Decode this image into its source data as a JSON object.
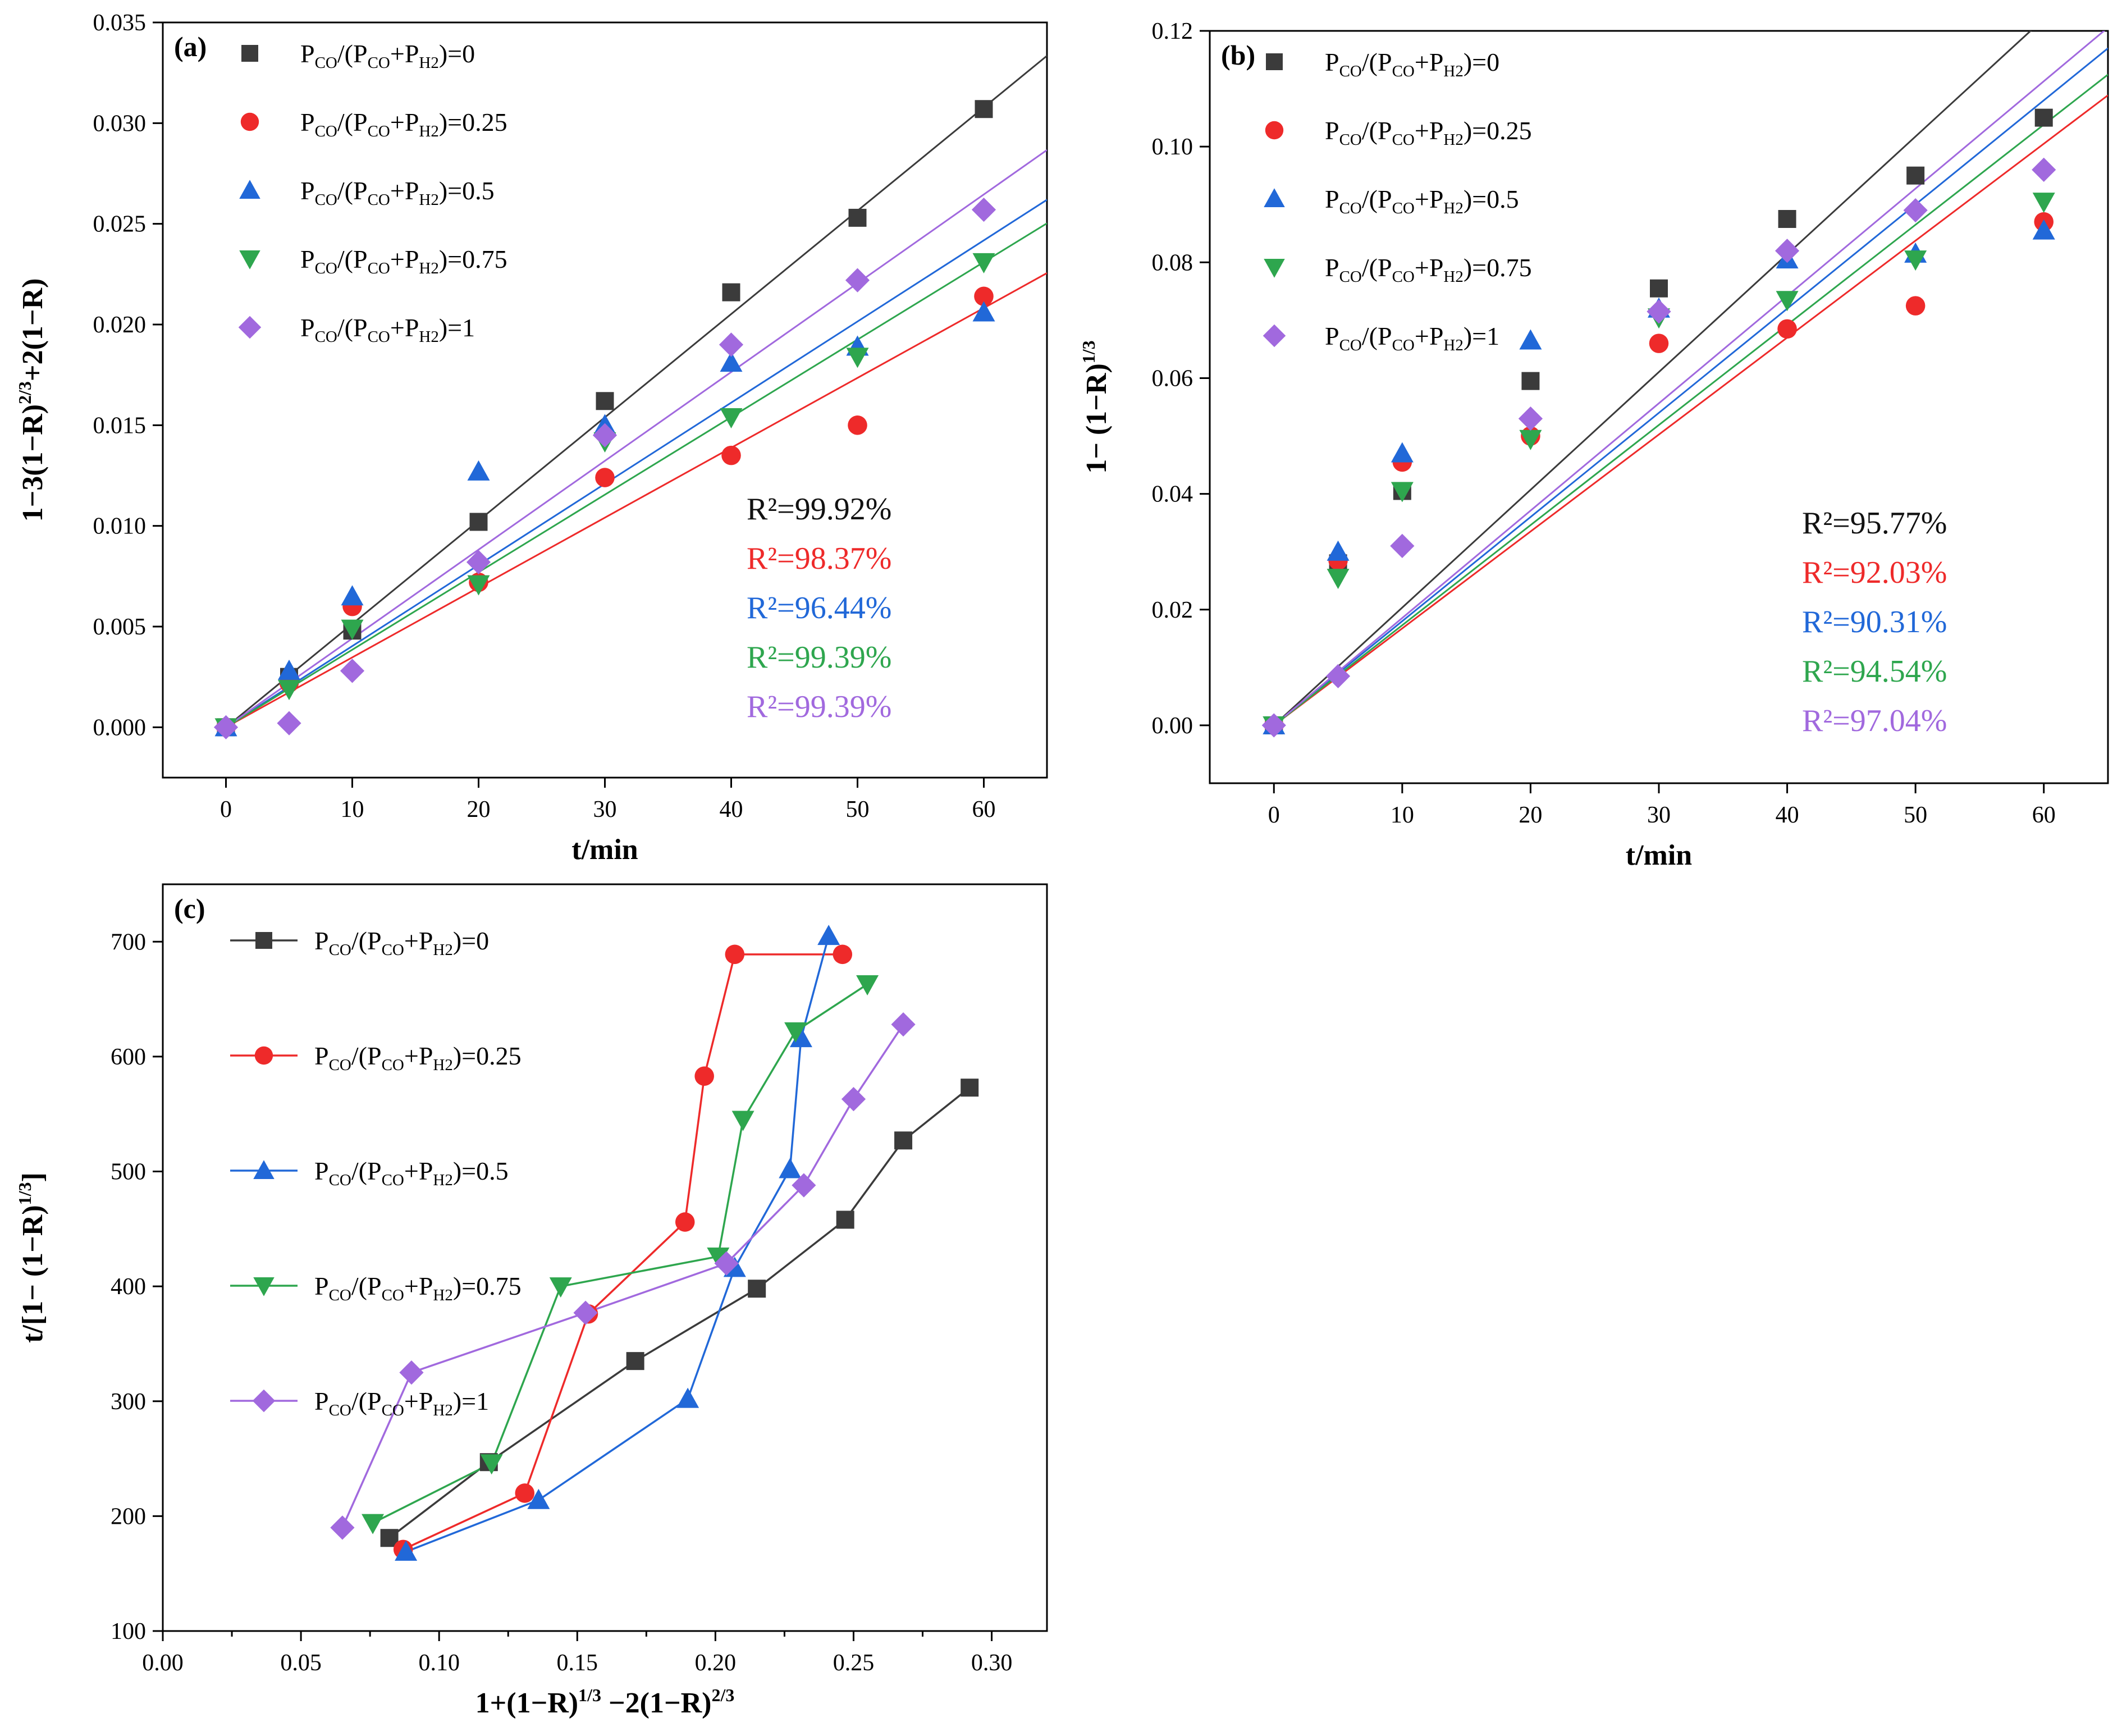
{
  "figure": {
    "colors": {
      "P0": "#3b3b3b",
      "P025": "#ee2a2a",
      "P05": "#2168d8",
      "P075": "#2ea64e",
      "P1": "#a169de"
    }
  },
  "chart_data": [
    {
      "id": "a",
      "type": "scatter",
      "panel_label": "(a)",
      "xlabel": "t/min",
      "ylabel": "1−3(1−R)^{2/3}+2(1−R)",
      "xlim": [
        -5,
        65
      ],
      "ylim": [
        -0.0025,
        0.035
      ],
      "xticks": [
        0,
        10,
        20,
        30,
        40,
        50,
        60
      ],
      "yticks": [
        0.0,
        0.005,
        0.01,
        0.015,
        0.02,
        0.025,
        0.03,
        0.035
      ],
      "ytick_labels": [
        "0.000",
        "0.005",
        "0.010",
        "0.015",
        "0.020",
        "0.025",
        "0.030",
        "0.035"
      ],
      "legend_position": "top-left",
      "x": [
        0,
        5,
        10,
        20,
        30,
        40,
        50,
        60
      ],
      "series": [
        {
          "key": "P0",
          "legend": "P_CO/(P_CO+P_H2)=0",
          "marker": "square",
          "values": [
            0,
            0.0025,
            0.0048,
            0.0102,
            0.0162,
            0.0216,
            0.0253,
            0.0307
          ],
          "fit_slope": 0.000513,
          "r2": "R²=99.92%"
        },
        {
          "key": "P025",
          "legend": "P_CO/(P_CO+P_H2)=0.25",
          "marker": "circle",
          "values": [
            0,
            0.0022,
            0.006,
            0.0072,
            0.0124,
            0.0135,
            0.015,
            0.0214
          ],
          "fit_slope": 0.000347,
          "r2": "R²=98.37%"
        },
        {
          "key": "P05",
          "legend": "P_CO/(P_CO+P_H2)=0.5",
          "marker": "triangle-up",
          "values": [
            0,
            0.0028,
            0.0065,
            0.0127,
            0.015,
            0.0181,
            0.0189,
            0.0206
          ],
          "fit_slope": 0.000403,
          "r2": "R²=96.44%"
        },
        {
          "key": "P075",
          "legend": "P_CO/(P_CO+P_H2)=0.75",
          "marker": "triangle-down",
          "values": [
            0,
            0.0019,
            0.0049,
            0.0071,
            0.0142,
            0.0154,
            0.0184,
            0.0231
          ],
          "fit_slope": 0.000385,
          "r2": "R²=99.39%"
        },
        {
          "key": "P1",
          "legend": "P_CO/(P_CO+P_H2)=1",
          "marker": "diamond",
          "values": [
            0,
            0.0002,
            0.0028,
            0.0082,
            0.0145,
            0.019,
            0.0222,
            0.0257
          ],
          "fit_slope": 0.000441,
          "r2": "R²=99.39%"
        }
      ]
    },
    {
      "id": "b",
      "type": "scatter",
      "panel_label": "(b)",
      "xlabel": "t/min",
      "ylabel": "1− (1−R)^{1/3}",
      "xlim": [
        -5,
        65
      ],
      "ylim": [
        -0.01,
        0.12
      ],
      "xticks": [
        0,
        10,
        20,
        30,
        40,
        50,
        60
      ],
      "yticks": [
        0.0,
        0.02,
        0.04,
        0.06,
        0.08,
        0.1,
        0.12
      ],
      "ytick_labels": [
        "0.00",
        "0.02",
        "0.04",
        "0.06",
        "0.08",
        "0.10",
        "0.12"
      ],
      "legend_position": "top-left",
      "x": [
        0,
        5,
        10,
        20,
        30,
        40,
        50,
        60
      ],
      "series": [
        {
          "key": "P0",
          "legend": "P_CO/(P_CO+P_H2)=0",
          "marker": "square",
          "values": [
            0,
            0.028,
            0.0405,
            0.0595,
            0.0755,
            0.0875,
            0.095,
            0.105
          ],
          "fit_slope": 0.002035,
          "r2": "R²=95.77%"
        },
        {
          "key": "P025",
          "legend": "P_CO/(P_CO+P_H2)=0.25",
          "marker": "circle",
          "values": [
            0,
            0.0285,
            0.0455,
            0.05,
            0.066,
            0.0685,
            0.0725,
            0.087
          ],
          "fit_slope": 0.001675,
          "r2": "R²=92.03%"
        },
        {
          "key": "P05",
          "legend": "P_CO/(P_CO+P_H2)=0.5",
          "marker": "triangle-up",
          "values": [
            0,
            0.03,
            0.047,
            0.0665,
            0.072,
            0.0805,
            0.0815,
            0.0855
          ],
          "fit_slope": 0.0018,
          "r2": "R²=90.31%"
        },
        {
          "key": "P075",
          "legend": "P_CO/(P_CO+P_H2)=0.75",
          "marker": "triangle-down",
          "values": [
            0,
            0.0255,
            0.0405,
            0.0495,
            0.0705,
            0.0735,
            0.0805,
            0.0905
          ],
          "fit_slope": 0.00173,
          "r2": "R²=94.54%"
        },
        {
          "key": "P1",
          "legend": "P_CO/(P_CO+P_H2)=1",
          "marker": "diamond",
          "values": [
            0,
            0.0085,
            0.031,
            0.053,
            0.0715,
            0.082,
            0.089,
            0.096
          ],
          "fit_slope": 0.001855,
          "r2": "R²=97.04%"
        }
      ]
    },
    {
      "id": "c",
      "type": "line",
      "panel_label": "(c)",
      "xlabel": "1+(1−R)^{1/3} −2(1−R)^{2/3}",
      "ylabel": "t/[1− (1−R)^{1/3}]",
      "xlim": [
        0.0,
        0.32
      ],
      "ylim": [
        100,
        750
      ],
      "xticks": [
        0.0,
        0.05,
        0.1,
        0.15,
        0.2,
        0.25,
        0.3
      ],
      "xtick_labels": [
        "0.00",
        "0.05",
        "0.10",
        "0.15",
        "0.20",
        "0.25",
        "0.30"
      ],
      "yticks": [
        100,
        200,
        300,
        400,
        500,
        600,
        700
      ],
      "legend_position": "top-left",
      "series": [
        {
          "key": "P0",
          "legend": "P_CO/(P_CO+P_H2)=0",
          "marker": "square",
          "points": [
            [
              0.082,
              181
            ],
            [
              0.118,
              247
            ],
            [
              0.171,
              335
            ],
            [
              0.215,
              398
            ],
            [
              0.247,
              458
            ],
            [
              0.268,
              527
            ],
            [
              0.292,
              573
            ]
          ]
        },
        {
          "key": "P025",
          "legend": "P_CO/(P_CO+P_H2)=0.25",
          "marker": "circle",
          "points": [
            [
              0.087,
              171
            ],
            [
              0.131,
              220
            ],
            [
              0.154,
              376
            ],
            [
              0.189,
              456
            ],
            [
              0.196,
              583
            ],
            [
              0.207,
              689
            ],
            [
              0.246,
              689
            ]
          ]
        },
        {
          "key": "P05",
          "legend": "P_CO/(P_CO+P_H2)=0.5",
          "marker": "triangle-up",
          "points": [
            [
              0.088,
              169
            ],
            [
              0.136,
              214
            ],
            [
              0.19,
              302
            ],
            [
              0.207,
              416
            ],
            [
              0.227,
              502
            ],
            [
              0.231,
              616
            ],
            [
              0.241,
              705
            ]
          ]
        },
        {
          "key": "P075",
          "legend": "P_CO/(P_CO+P_H2)=0.75",
          "marker": "triangle-down",
          "points": [
            [
              0.076,
              194
            ],
            [
              0.119,
              246
            ],
            [
              0.144,
              400
            ],
            [
              0.201,
              426
            ],
            [
              0.21,
              545
            ],
            [
              0.229,
              622
            ],
            [
              0.255,
              663
            ]
          ]
        },
        {
          "key": "P1",
          "legend": "P_CO/(P_CO+P_H2)=1",
          "marker": "diamond",
          "points": [
            [
              0.065,
              190
            ],
            [
              0.09,
              325
            ],
            [
              0.153,
              377
            ],
            [
              0.204,
              420
            ],
            [
              0.232,
              488
            ],
            [
              0.25,
              563
            ],
            [
              0.268,
              628
            ]
          ]
        }
      ]
    }
  ]
}
